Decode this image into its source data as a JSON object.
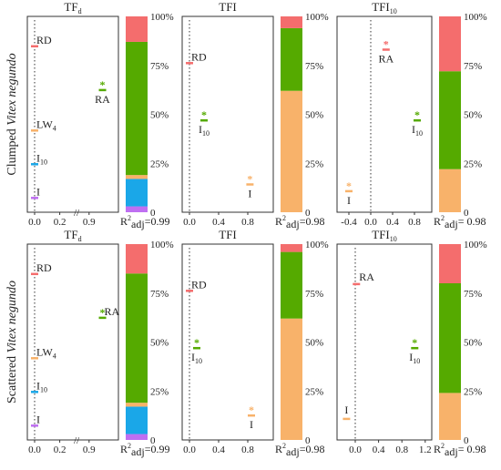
{
  "colors": {
    "RD": "#f46d6d",
    "RA": "#55aa00",
    "LW4": "#f8b26a",
    "I10": "#1aa7e8",
    "I": "#bf6ff2",
    "remainder": "#f8b26a",
    "RA_text_star": "#55aa00",
    "RD_star": "#f46d6d",
    "I_star": "#f8b26a"
  },
  "rows": [
    {
      "title": "Clumped Vitex negundo",
      "title_plain": "Clumped ",
      "title_italic": "Vitex negundo",
      "charts": [
        {
          "title": "TFd",
          "title_main": "TF",
          "title_sub": "d",
          "x_ticks": [
            "0.0",
            "0.2",
            "0.9"
          ],
          "r2_prefix": "R",
          "r2_sup": "2",
          "r2_sub": "adj",
          "r2_value": "=0.99",
          "points": [
            {
              "label": "RD",
              "sub": "",
              "x": 0.0,
              "rank": 0.92,
              "color_key": "RD",
              "star": false,
              "label_pos": "right"
            },
            {
              "label": "RA",
              "sub": "",
              "x": 0.98,
              "rank": 0.66,
              "color_key": "RA",
              "star": true,
              "label_pos": "below"
            },
            {
              "label": "LW",
              "sub": "4",
              "x": 0.0,
              "rank": 0.42,
              "color_key": "LW4",
              "star": false,
              "label_pos": "right"
            },
            {
              "label": "I",
              "sub": "10",
              "x": 0.0,
              "rank": 0.22,
              "color_key": "I10",
              "star": false,
              "label_pos": "right"
            },
            {
              "label": "I",
              "sub": "",
              "x": 0.0,
              "rank": 0.02,
              "color_key": "I",
              "star": false,
              "label_pos": "right"
            }
          ],
          "bar_segments": [
            {
              "color_key": "I",
              "value": 3
            },
            {
              "color_key": "I10",
              "value": 14
            },
            {
              "color_key": "LW4",
              "value": 2
            },
            {
              "color_key": "RA",
              "value": 68
            },
            {
              "color_key": "RD",
              "value": 13
            }
          ]
        },
        {
          "title": "TFI",
          "title_main": "TFI",
          "title_sub": "",
          "x_ticks": [
            "0.0",
            "0.4",
            "0.8"
          ],
          "x_range": [
            -0.05,
            1.1
          ],
          "r2_prefix": "R",
          "r2_sup": "2",
          "r2_sub": "adj",
          "r2_value": "=0.98",
          "points": [
            {
              "label": "RD",
              "sub": "",
              "x": 0.0,
              "rank": 0.82,
              "color_key": "RD",
              "star": false,
              "label_pos": "right"
            },
            {
              "label": "I",
              "sub": "10",
              "x": 0.2,
              "rank": 0.48,
              "color_key": "RA",
              "star": true,
              "label_pos": "below"
            },
            {
              "label": "I",
              "sub": "",
              "x": 0.83,
              "rank": 0.1,
              "color_key": "I_star",
              "star": true,
              "label_pos": "below"
            }
          ],
          "bar_segments": [
            {
              "color_key": "remainder",
              "value": 62
            },
            {
              "color_key": "RA",
              "value": 32
            },
            {
              "color_key": "RD",
              "value": 6
            }
          ]
        },
        {
          "title": "TFI10",
          "title_main": "TFI",
          "title_sub": "10",
          "x_ticks": [
            "-0.4",
            "0.0",
            "0.4",
            "0.8"
          ],
          "x_range": [
            -0.55,
            1.05
          ],
          "r2_prefix": "R",
          "r2_sup": "2",
          "r2_sub": "adj",
          "r2_value": "= 0.98",
          "points": [
            {
              "label": "RA",
              "sub": "",
              "x": 0.28,
              "rank": 0.9,
              "color_key": "RD_star",
              "star": true,
              "label_pos": "below"
            },
            {
              "label": "I",
              "sub": "10",
              "x": 0.85,
              "rank": 0.48,
              "color_key": "RA",
              "star": true,
              "label_pos": "below"
            },
            {
              "label": "I",
              "sub": "",
              "x": -0.4,
              "rank": 0.06,
              "color_key": "I_star",
              "star": true,
              "label_pos": "below"
            }
          ],
          "bar_segments": [
            {
              "color_key": "remainder",
              "value": 22
            },
            {
              "color_key": "RA",
              "value": 50
            },
            {
              "color_key": "RD",
              "value": 28
            }
          ]
        }
      ]
    },
    {
      "title": "Scattered Vitex negundo",
      "title_plain": "Scattered ",
      "title_italic": "Vitex negundo",
      "charts": [
        {
          "title": "TFd",
          "title_main": "TF",
          "title_sub": "d",
          "x_ticks": [
            "0.0",
            "0.2",
            "0.9"
          ],
          "r2_prefix": "R",
          "r2_sup": "2",
          "r2_sub": "adj",
          "r2_value": "=0.99",
          "points": [
            {
              "label": "RD",
              "sub": "",
              "x": 0.0,
              "rank": 0.92,
              "color_key": "RD",
              "star": false,
              "label_pos": "right"
            },
            {
              "label": "RA",
              "sub": "",
              "x": 0.98,
              "rank": 0.66,
              "color_key": "RA",
              "star": true,
              "label_pos": "right"
            },
            {
              "label": "LW",
              "sub": "4",
              "x": 0.0,
              "rank": 0.42,
              "color_key": "LW4",
              "star": false,
              "label_pos": "right"
            },
            {
              "label": "I",
              "sub": "10",
              "x": 0.0,
              "rank": 0.22,
              "color_key": "I10",
              "star": false,
              "label_pos": "right"
            },
            {
              "label": "I",
              "sub": "",
              "x": 0.0,
              "rank": 0.02,
              "color_key": "I",
              "star": false,
              "label_pos": "right"
            }
          ],
          "bar_segments": [
            {
              "color_key": "I",
              "value": 3
            },
            {
              "color_key": "I10",
              "value": 14
            },
            {
              "color_key": "LW4",
              "value": 2
            },
            {
              "color_key": "RA",
              "value": 66
            },
            {
              "color_key": "RD",
              "value": 15
            }
          ]
        },
        {
          "title": "TFI",
          "title_main": "TFI",
          "title_sub": "",
          "x_ticks": [
            "0.0",
            "0.4",
            "0.8"
          ],
          "x_range": [
            -0.05,
            1.1
          ],
          "r2_prefix": "R",
          "r2_sup": "2",
          "r2_sub": "adj",
          "r2_value": "=0.98",
          "points": [
            {
              "label": "RD",
              "sub": "",
              "x": 0.0,
              "rank": 0.82,
              "color_key": "RD",
              "star": false,
              "label_pos": "right"
            },
            {
              "label": "I",
              "sub": "10",
              "x": 0.1,
              "rank": 0.48,
              "color_key": "RA",
              "star": true,
              "label_pos": "below"
            },
            {
              "label": "I",
              "sub": "",
              "x": 0.85,
              "rank": 0.08,
              "color_key": "I_star",
              "star": true,
              "label_pos": "below"
            }
          ],
          "bar_segments": [
            {
              "color_key": "remainder",
              "value": 62
            },
            {
              "color_key": "RA",
              "value": 34
            },
            {
              "color_key": "RD",
              "value": 4
            }
          ]
        },
        {
          "title": "TFI10",
          "title_main": "TFI",
          "title_sub": "10",
          "x_ticks": [
            "0.0",
            "0.4",
            "0.8",
            "1.2"
          ],
          "x_range": [
            -0.25,
            1.25
          ],
          "r2_prefix": "R",
          "r2_sup": "2",
          "r2_sub": "adj",
          "r2_value": "= 0.98",
          "points": [
            {
              "label": "RA",
              "sub": "",
              "x": 0.02,
              "rank": 0.86,
              "color_key": "RD",
              "star": false,
              "label_pos": "above-right"
            },
            {
              "label": "I",
              "sub": "10",
              "x": 1.02,
              "rank": 0.48,
              "color_key": "RA",
              "star": true,
              "label_pos": "below"
            },
            {
              "label": "I",
              "sub": "",
              "x": -0.15,
              "rank": 0.06,
              "color_key": "I_star",
              "star": false,
              "label_pos": "above"
            }
          ],
          "bar_segments": [
            {
              "color_key": "remainder",
              "value": 24
            },
            {
              "color_key": "RA",
              "value": 56
            },
            {
              "color_key": "RD",
              "value": 20
            }
          ]
        }
      ]
    }
  ],
  "pct_ticks": [
    "0",
    "25%",
    "50%",
    "75%",
    "100%"
  ],
  "chart_data": [
    {
      "type": "scatter",
      "title": "TFd",
      "series": [
        {
          "values": [
            {
              "label": "RD",
              "x": 0.0
            },
            {
              "label": "RA",
              "x": 0.98
            },
            {
              "label": "LW4",
              "x": 0.0
            },
            {
              "label": "I10",
              "x": 0.0
            },
            {
              "label": "I",
              "x": 0.0
            }
          ]
        }
      ],
      "bar": {
        "type": "bar",
        "categories": [
          "I",
          "I10",
          "LW4",
          "RA",
          "RD"
        ],
        "values": [
          3,
          14,
          2,
          68,
          13
        ]
      }
    },
    {
      "type": "scatter",
      "title": "TFI",
      "series": [
        {
          "values": [
            {
              "label": "RD",
              "x": 0.0
            },
            {
              "label": "I10",
              "x": 0.2
            },
            {
              "label": "I",
              "x": 0.83
            }
          ]
        }
      ],
      "bar": {
        "type": "bar",
        "categories": [
          "I",
          "I10",
          "RD"
        ],
        "values": [
          62,
          32,
          6
        ]
      }
    },
    {
      "type": "scatter",
      "title": "TFI10",
      "series": [
        {
          "values": [
            {
              "label": "RA",
              "x": 0.28
            },
            {
              "label": "I10",
              "x": 0.85
            },
            {
              "label": "I",
              "x": -0.4
            }
          ]
        }
      ],
      "bar": {
        "type": "bar",
        "categories": [
          "I",
          "I10",
          "RA"
        ],
        "values": [
          22,
          50,
          28
        ]
      }
    }
  ]
}
